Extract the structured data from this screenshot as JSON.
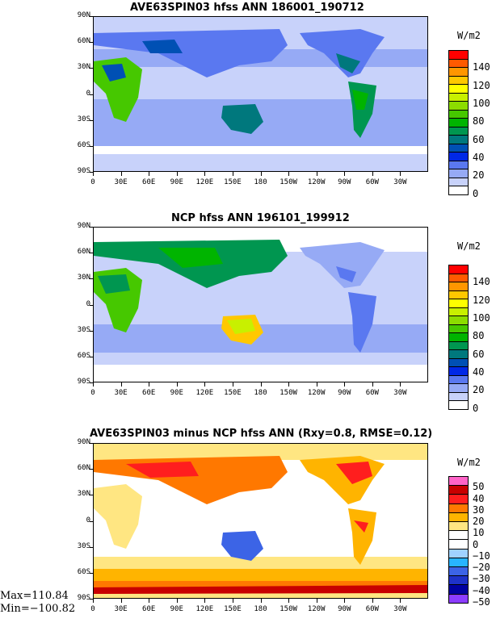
{
  "panels": [
    {
      "id": "p1",
      "title": "AVE63SPIN03 hfss ANN 186001_190712",
      "unit": "W/m2",
      "colorbar": {
        "labels": [
          "140",
          "120",
          "100",
          "80",
          "60",
          "40",
          "20",
          "0"
        ],
        "colors": [
          "#ff0000",
          "#ff5a00",
          "#ff9600",
          "#ffc800",
          "#ffff00",
          "#c8f000",
          "#8cdc00",
          "#46c800",
          "#00b400",
          "#009650",
          "#00787d",
          "#0050b4",
          "#0028e6",
          "#5a78f0",
          "#96aaf5",
          "#c8d2fa",
          "#ffffff"
        ]
      }
    },
    {
      "id": "p2",
      "title": "NCP hfss ANN 196101_199912",
      "unit": "W/m2",
      "colorbar": {
        "labels": [
          "140",
          "120",
          "100",
          "80",
          "60",
          "40",
          "20",
          "0"
        ],
        "colors": [
          "#ff0000",
          "#ff5a00",
          "#ff9600",
          "#ffc800",
          "#ffff00",
          "#c8f000",
          "#8cdc00",
          "#46c800",
          "#00b400",
          "#009650",
          "#00787d",
          "#0050b4",
          "#0028e6",
          "#5a78f0",
          "#96aaf5",
          "#c8d2fa",
          "#ffffff"
        ]
      }
    },
    {
      "id": "p3",
      "title": "AVE63SPIN03 minus NCP hfss ANN (Rxy=0.8, RMSE=0.12)",
      "unit": "W/m2",
      "colorbar": {
        "labels": [
          "50",
          "40",
          "30",
          "20",
          "10",
          "0",
          "−10",
          "−20",
          "−30",
          "−40",
          "−50"
        ],
        "colors": [
          "#ff64c8",
          "#c80000",
          "#ff1e1e",
          "#ff7800",
          "#ffb400",
          "#ffe682",
          "#ffffff",
          "#ffffff",
          "#a0d2ff",
          "#28b4ff",
          "#3c64e6",
          "#1e32c8",
          "#0000a0",
          "#8c3cff"
        ]
      }
    }
  ],
  "axes": {
    "lat_labels": [
      "90N",
      "60N",
      "30N",
      "0",
      "30S",
      "60S",
      "90S"
    ],
    "lon_labels": [
      "0",
      "30E",
      "60E",
      "90E",
      "120E",
      "150E",
      "180",
      "150W",
      "120W",
      "90W",
      "60W",
      "30W"
    ]
  },
  "stats": {
    "max": "Max=110.84",
    "min": "Min=−100.82"
  }
}
